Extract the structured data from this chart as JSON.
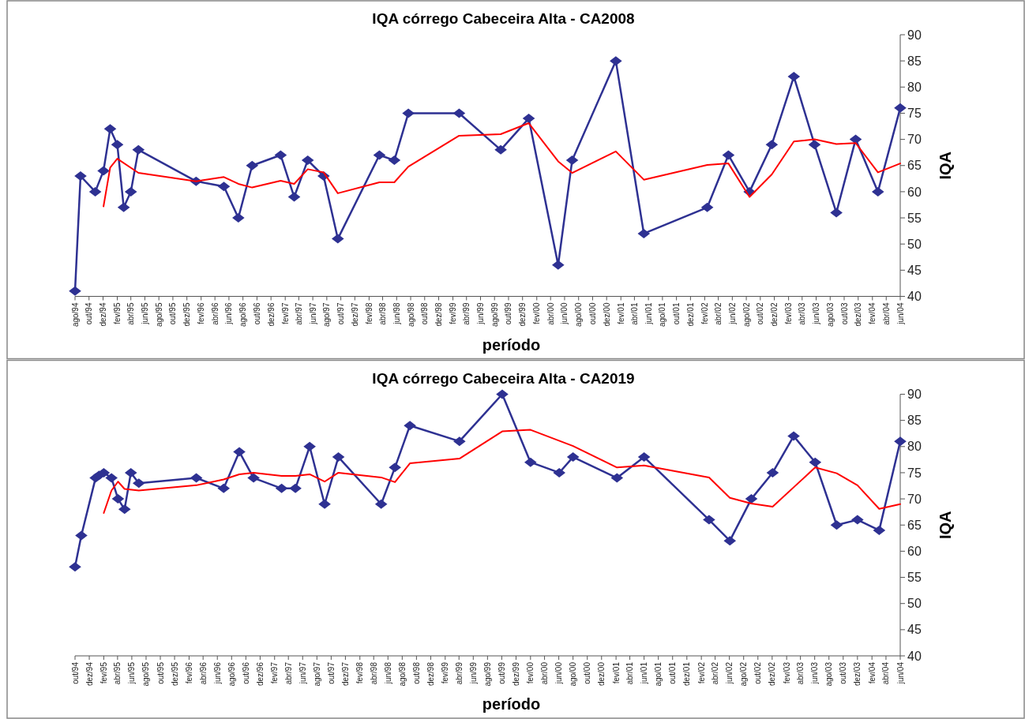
{
  "chart_data": [
    {
      "type": "line",
      "title": "IQA córrego Cabeceira Alta - CA2008",
      "xlabel": "período",
      "ylabel": "IQA",
      "grid": false,
      "xlim": [
        "1994-08",
        "2004-06"
      ],
      "ylim": [
        40,
        90
      ],
      "yticks": [
        40,
        45,
        50,
        55,
        60,
        65,
        70,
        75,
        80,
        85,
        90
      ],
      "xticks": [
        {
          "value": "1994-08",
          "label": "ago/94"
        },
        {
          "value": "1994-10",
          "label": "out/94"
        },
        {
          "value": "1994-12",
          "label": "dez/94"
        },
        {
          "value": "1995-02",
          "label": "fev/95"
        },
        {
          "value": "1995-04",
          "label": "abr/95"
        },
        {
          "value": "1995-06",
          "label": "jun/95"
        },
        {
          "value": "1995-08",
          "label": "ago/95"
        },
        {
          "value": "1995-10",
          "label": "out/95"
        },
        {
          "value": "1995-12",
          "label": "dez/95"
        },
        {
          "value": "1996-02",
          "label": "fev/96"
        },
        {
          "value": "1996-04",
          "label": "abr/96"
        },
        {
          "value": "1996-06",
          "label": "jun/96"
        },
        {
          "value": "1996-08",
          "label": "ago/96"
        },
        {
          "value": "1996-10",
          "label": "out/96"
        },
        {
          "value": "1996-12",
          "label": "dez/96"
        },
        {
          "value": "1997-02",
          "label": "fev/97"
        },
        {
          "value": "1997-04",
          "label": "abr/97"
        },
        {
          "value": "1997-06",
          "label": "jun/97"
        },
        {
          "value": "1997-08",
          "label": "ago/97"
        },
        {
          "value": "1997-10",
          "label": "out/97"
        },
        {
          "value": "1997-12",
          "label": "dez/97"
        },
        {
          "value": "1998-02",
          "label": "fev/98"
        },
        {
          "value": "1998-04",
          "label": "abr/98"
        },
        {
          "value": "1998-06",
          "label": "jun/98"
        },
        {
          "value": "1998-08",
          "label": "ago/98"
        },
        {
          "value": "1998-10",
          "label": "out/98"
        },
        {
          "value": "1998-12",
          "label": "dez/98"
        },
        {
          "value": "1999-02",
          "label": "fev/99"
        },
        {
          "value": "1999-04",
          "label": "abr/99"
        },
        {
          "value": "1999-06",
          "label": "jun/99"
        },
        {
          "value": "1999-08",
          "label": "ago/99"
        },
        {
          "value": "1999-10",
          "label": "out/99"
        },
        {
          "value": "1999-12",
          "label": "dez/99"
        },
        {
          "value": "2000-02",
          "label": "fev/00"
        },
        {
          "value": "2000-04",
          "label": "abr/00"
        },
        {
          "value": "2000-06",
          "label": "jun/00"
        },
        {
          "value": "2000-08",
          "label": "ago/00"
        },
        {
          "value": "2000-10",
          "label": "out/00"
        },
        {
          "value": "2000-12",
          "label": "dez/00"
        },
        {
          "value": "2001-02",
          "label": "fev/01"
        },
        {
          "value": "2001-04",
          "label": "abr/01"
        },
        {
          "value": "2001-06",
          "label": "jun/01"
        },
        {
          "value": "2001-08",
          "label": "ago/01"
        },
        {
          "value": "2001-10",
          "label": "out/01"
        },
        {
          "value": "2001-12",
          "label": "dez/01"
        },
        {
          "value": "2002-02",
          "label": "fev/02"
        },
        {
          "value": "2002-04",
          "label": "abr/02"
        },
        {
          "value": "2002-06",
          "label": "jun/02"
        },
        {
          "value": "2002-08",
          "label": "ago/02"
        },
        {
          "value": "2002-10",
          "label": "out/02"
        },
        {
          "value": "2002-12",
          "label": "dez/02"
        },
        {
          "value": "2003-02",
          "label": "fev/03"
        },
        {
          "value": "2003-04",
          "label": "abr/03"
        },
        {
          "value": "2003-06",
          "label": "jun/03"
        },
        {
          "value": "2003-08",
          "label": "ago/03"
        },
        {
          "value": "2003-10",
          "label": "out/03"
        },
        {
          "value": "2003-12",
          "label": "dez/03"
        },
        {
          "value": "2004-02",
          "label": "fev/04"
        },
        {
          "value": "2004-04",
          "label": "abr/04"
        },
        {
          "value": "2004-06",
          "label": "jun/04"
        }
      ],
      "series": [
        {
          "color": "#2e3192",
          "marker": "diamond",
          "x": [
            "1994-08-01",
            "1994-08-25",
            "1994-10-28",
            "1994-12-03",
            "1995-01-01",
            "1995-02-01",
            "1995-03-01",
            "1995-04-01",
            "1995-05-04",
            "1996-01-10",
            "1996-05-10",
            "1996-07-12",
            "1996-09-10",
            "1997-01-12",
            "1997-03-12",
            "1997-05-10",
            "1997-07-18",
            "1997-09-18",
            "1998-03-18",
            "1998-05-22",
            "1998-07-22",
            "1999-02-28",
            "1999-08-28",
            "1999-12-28",
            "2000-05-04",
            "2000-07-04",
            "2001-01-10",
            "2001-05-12",
            "2002-02-12",
            "2002-05-15",
            "2002-08-15",
            "2002-11-20",
            "2003-02-24",
            "2003-05-25",
            "2003-08-28",
            "2003-11-20",
            "2004-02-25",
            "2004-06-01"
          ],
          "values": [
            41,
            63,
            60,
            64,
            72,
            69,
            57,
            60,
            68,
            62,
            61,
            55,
            65,
            67,
            59,
            66,
            63,
            51,
            67,
            66,
            75,
            75,
            68,
            74,
            46,
            66,
            85,
            52,
            57,
            67,
            60,
            69,
            82,
            69,
            56,
            70,
            60,
            76
          ]
        },
        {
          "color": "#ff0000",
          "marker": "none",
          "x": [
            "1994-12-03",
            "1995-01-01",
            "1995-02-01",
            "1995-05-04",
            "1996-01-10",
            "1996-05-10",
            "1996-07-12",
            "1996-09-10",
            "1997-01-12",
            "1997-03-12",
            "1997-05-10",
            "1997-07-18",
            "1997-09-18",
            "1998-03-18",
            "1998-05-22",
            "1998-07-22",
            "1999-02-28",
            "1999-08-28",
            "1999-12-28",
            "2000-05-04",
            "2000-07-04",
            "2001-01-10",
            "2001-05-12",
            "2002-02-12",
            "2002-05-15",
            "2002-08-15",
            "2002-11-20",
            "2003-02-24",
            "2003-05-25",
            "2003-08-28",
            "2003-11-20",
            "2004-02-25",
            "2004-06-01"
          ],
          "values": [
            57.2,
            64.6,
            66.3,
            63.6,
            62.0,
            62.8,
            61.5,
            60.8,
            62.1,
            61.5,
            64.3,
            63.7,
            59.7,
            61.8,
            61.8,
            64.8,
            70.7,
            71.0,
            73.1,
            65.8,
            63.6,
            67.7,
            62.3,
            65.1,
            65.4,
            59.0,
            63.3,
            69.6,
            70.0,
            69.1,
            69.3,
            63.7,
            65.4
          ]
        }
      ]
    },
    {
      "type": "line",
      "title": "IQA córrego Cabeceira Alta - CA2019",
      "xlabel": "período",
      "ylabel": "IQA",
      "grid": false,
      "xlim": [
        "1994-10",
        "2004-06"
      ],
      "ylim": [
        40,
        90
      ],
      "yticks": [
        40,
        45,
        50,
        55,
        60,
        65,
        70,
        75,
        80,
        85,
        90
      ],
      "xticks": [
        {
          "value": "1994-10",
          "label": "out/94"
        },
        {
          "value": "1994-12",
          "label": "dez/94"
        },
        {
          "value": "1995-02",
          "label": "fev/95"
        },
        {
          "value": "1995-04",
          "label": "abr/95"
        },
        {
          "value": "1995-06",
          "label": "jun/95"
        },
        {
          "value": "1995-08",
          "label": "ago/95"
        },
        {
          "value": "1995-10",
          "label": "out/95"
        },
        {
          "value": "1995-12",
          "label": "dez/95"
        },
        {
          "value": "1996-02",
          "label": "fev/96"
        },
        {
          "value": "1996-04",
          "label": "abr/96"
        },
        {
          "value": "1996-06",
          "label": "jun/96"
        },
        {
          "value": "1996-08",
          "label": "ago/96"
        },
        {
          "value": "1996-10",
          "label": "out/96"
        },
        {
          "value": "1996-12",
          "label": "dez/96"
        },
        {
          "value": "1997-02",
          "label": "fev/97"
        },
        {
          "value": "1997-04",
          "label": "abr/97"
        },
        {
          "value": "1997-06",
          "label": "jun/97"
        },
        {
          "value": "1997-08",
          "label": "ago/97"
        },
        {
          "value": "1997-10",
          "label": "out/97"
        },
        {
          "value": "1997-12",
          "label": "dez/97"
        },
        {
          "value": "1998-02",
          "label": "fev/98"
        },
        {
          "value": "1998-04",
          "label": "abr/98"
        },
        {
          "value": "1998-06",
          "label": "jun/98"
        },
        {
          "value": "1998-08",
          "label": "ago/98"
        },
        {
          "value": "1998-10",
          "label": "out/98"
        },
        {
          "value": "1998-12",
          "label": "dez/98"
        },
        {
          "value": "1999-02",
          "label": "fev/99"
        },
        {
          "value": "1999-04",
          "label": "abr/99"
        },
        {
          "value": "1999-06",
          "label": "jun/99"
        },
        {
          "value": "1999-08",
          "label": "ago/99"
        },
        {
          "value": "1999-10",
          "label": "out/99"
        },
        {
          "value": "1999-12",
          "label": "dez/99"
        },
        {
          "value": "2000-02",
          "label": "fev/00"
        },
        {
          "value": "2000-04",
          "label": "abr/00"
        },
        {
          "value": "2000-06",
          "label": "jun/00"
        },
        {
          "value": "2000-08",
          "label": "ago/00"
        },
        {
          "value": "2000-10",
          "label": "out/00"
        },
        {
          "value": "2000-12",
          "label": "dez/00"
        },
        {
          "value": "2001-02",
          "label": "fev/01"
        },
        {
          "value": "2001-04",
          "label": "abr/01"
        },
        {
          "value": "2001-06",
          "label": "jun/01"
        },
        {
          "value": "2001-08",
          "label": "ago/01"
        },
        {
          "value": "2001-10",
          "label": "out/01"
        },
        {
          "value": "2001-12",
          "label": "dez/01"
        },
        {
          "value": "2002-02",
          "label": "fev/02"
        },
        {
          "value": "2002-04",
          "label": "abr/02"
        },
        {
          "value": "2002-06",
          "label": "jun/02"
        },
        {
          "value": "2002-08",
          "label": "ago/02"
        },
        {
          "value": "2002-10",
          "label": "out/02"
        },
        {
          "value": "2002-12",
          "label": "dez/02"
        },
        {
          "value": "2003-02",
          "label": "fev/03"
        },
        {
          "value": "2003-04",
          "label": "abr/03"
        },
        {
          "value": "2003-06",
          "label": "jun/03"
        },
        {
          "value": "2003-08",
          "label": "ago/03"
        },
        {
          "value": "2003-10",
          "label": "out/03"
        },
        {
          "value": "2003-12",
          "label": "dez/03"
        },
        {
          "value": "2004-02",
          "label": "fev/04"
        },
        {
          "value": "2004-04",
          "label": "abr/04"
        },
        {
          "value": "2004-06",
          "label": "jun/04"
        }
      ],
      "series": [
        {
          "color": "#2e3192",
          "marker": "diamond",
          "x": [
            "1994-10-01",
            "1994-10-28",
            "1994-12-28",
            "1995-01-12",
            "1995-02-01",
            "1995-03-06",
            "1995-04-03",
            "1995-05-01",
            "1995-05-28",
            "1995-07-01",
            "1996-03-03",
            "1996-06-28",
            "1996-09-03",
            "1996-11-03",
            "1997-03-03",
            "1997-05-01",
            "1997-07-01",
            "1997-09-03",
            "1997-11-01",
            "1998-05-03",
            "1998-07-01",
            "1998-09-03",
            "1999-04-03",
            "1999-10-03",
            "2000-02-01",
            "2000-06-03",
            "2000-08-01",
            "2001-02-05",
            "2001-06-01",
            "2002-03-06",
            "2002-06-03",
            "2002-09-03",
            "2002-12-03",
            "2003-03-03",
            "2003-06-03",
            "2003-09-03",
            "2003-12-01",
            "2004-03-03",
            "2004-06-01"
          ],
          "values": [
            57,
            63,
            74,
            74.5,
            75,
            74,
            70,
            68,
            75,
            73,
            74,
            72,
            79,
            74,
            72,
            72,
            80,
            69,
            78,
            69,
            76,
            84,
            81,
            90,
            77,
            75,
            78,
            74,
            78,
            66,
            62,
            70,
            75,
            82,
            77,
            65,
            66,
            64,
            81
          ]
        },
        {
          "color": "#ff0000",
          "marker": "none",
          "x": [
            "1995-02-01",
            "1995-03-06",
            "1995-04-03",
            "1995-05-01",
            "1995-07-01",
            "1996-03-03",
            "1996-06-28",
            "1996-09-03",
            "1996-11-03",
            "1997-03-03",
            "1997-05-01",
            "1997-07-01",
            "1997-09-03",
            "1997-11-01",
            "1998-05-03",
            "1998-07-01",
            "1998-09-03",
            "1999-04-03",
            "1999-10-03",
            "2000-02-01",
            "2000-08-01",
            "2001-02-05",
            "2001-06-01",
            "2002-03-06",
            "2002-06-03",
            "2002-09-03",
            "2002-12-03",
            "2003-06-03",
            "2003-09-03",
            "2003-12-01",
            "2004-03-03",
            "2004-06-01"
          ],
          "values": [
            67.3,
            71.6,
            73.3,
            71.9,
            71.6,
            72.6,
            73.7,
            74.7,
            75.0,
            74.4,
            74.4,
            74.7,
            73.3,
            75.0,
            74.1,
            73.2,
            76.8,
            77.7,
            82.9,
            83.2,
            80.1,
            76.0,
            76.4,
            74.1,
            70.2,
            69.1,
            68.5,
            76.0,
            74.9,
            72.6,
            68.1,
            69.0
          ]
        }
      ]
    }
  ]
}
